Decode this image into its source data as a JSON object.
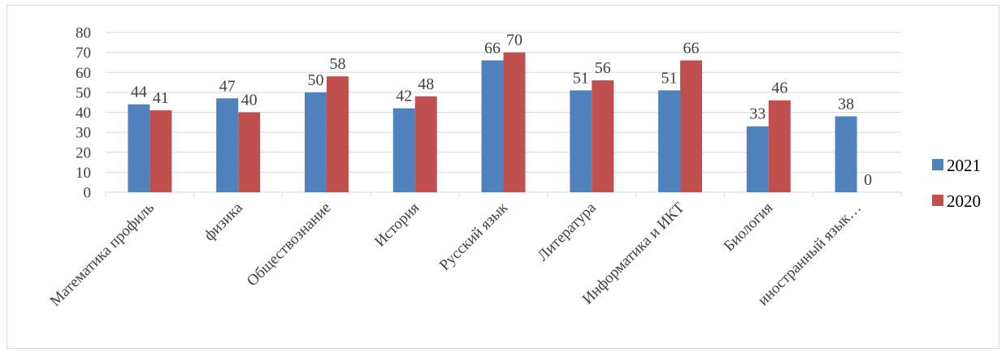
{
  "chart_data": {
    "type": "bar",
    "categories": [
      "Математика профиль",
      "физика",
      "Обществознание",
      "История",
      "Русский язык",
      "Литература",
      "Информатика и ИКТ",
      "Биология",
      "иностранный язык…"
    ],
    "series": [
      {
        "name": "2021",
        "values": [
          44,
          47,
          50,
          42,
          66,
          51,
          51,
          33,
          38
        ]
      },
      {
        "name": "2020",
        "values": [
          41,
          40,
          58,
          48,
          70,
          56,
          66,
          46,
          0
        ]
      }
    ],
    "yticks": [
      0,
      10,
      20,
      30,
      40,
      50,
      60,
      70,
      80
    ],
    "ylim": [
      0,
      80
    ],
    "title": "",
    "xlabel": "",
    "ylabel": "",
    "grid": true,
    "legend_position": "right",
    "colors": [
      "#4f81bd",
      "#c0504d"
    ],
    "grid_color": "#d9d9d9"
  }
}
